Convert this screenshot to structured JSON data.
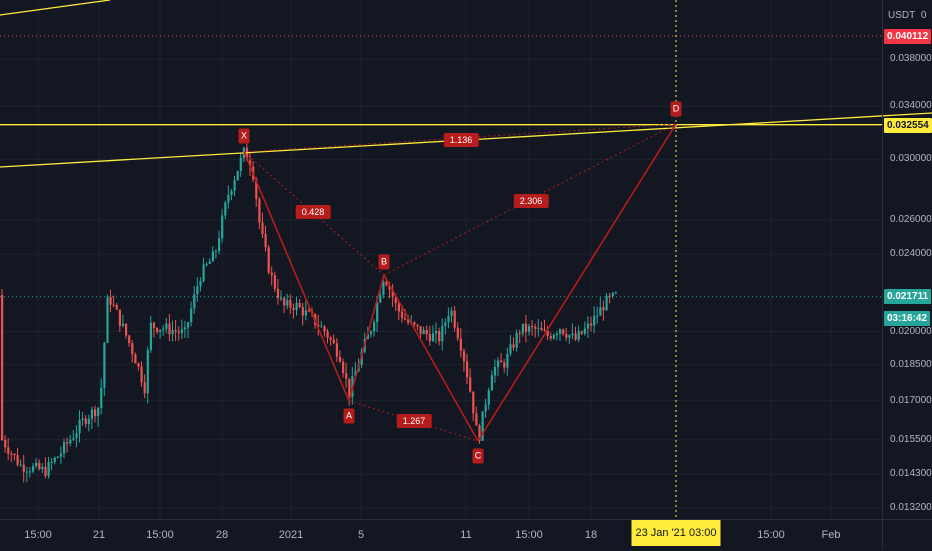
{
  "price_axis": {
    "currency_label": "USDT",
    "mode_label": "0",
    "tick_labels": [
      {
        "value": 0.038,
        "text": "0.038000"
      },
      {
        "value": 0.034,
        "text": "0.034000"
      },
      {
        "value": 0.03,
        "text": "0.030000"
      },
      {
        "value": 0.026,
        "text": "0.026000"
      },
      {
        "value": 0.024,
        "text": "0.024000"
      },
      {
        "value": 0.02,
        "text": "0.020000"
      },
      {
        "value": 0.0185,
        "text": "0.018500"
      },
      {
        "value": 0.017,
        "text": "0.017000"
      },
      {
        "value": 0.0155,
        "text": "0.015500"
      },
      {
        "value": 0.0143,
        "text": "0.014300"
      },
      {
        "value": 0.0132,
        "text": "0.013200"
      }
    ],
    "price_tags": {
      "alert": {
        "value": 0.040112,
        "text": "0.040112",
        "color": "#f23645"
      },
      "line": {
        "value": 0.032554,
        "text": "0.032554",
        "color": "#ffeb3b"
      },
      "last": {
        "value": 0.021711,
        "text": "0.021711",
        "color": "#26a69a"
      },
      "countdown": {
        "text": "03:16:42",
        "color": "#26a69a"
      }
    }
  },
  "time_axis": {
    "labels": [
      "15:00",
      "21",
      "15:00",
      "28",
      "2021",
      "5",
      "11",
      "15:00",
      "18",
      "15:00",
      "Feb"
    ],
    "crosshair_label": "23 Jan '21   03:00"
  },
  "pattern": {
    "points": [
      {
        "label": "X",
        "time": "29 Dec 2020",
        "price": 0.0305
      },
      {
        "label": "A",
        "time": "4 Jan 2021",
        "price": 0.0172
      },
      {
        "label": "B",
        "time": "6 Jan 2021",
        "price": 0.0229
      },
      {
        "label": "C",
        "time": "11 Jan 2021",
        "price": 0.0154
      },
      {
        "label": "D",
        "time": "23 Jan 2021",
        "price": 0.03255
      }
    ],
    "ratios": [
      "0.428",
      "1.267",
      "2.306",
      "1.136"
    ]
  },
  "colors": {
    "background": "#131722",
    "grid": "#1e222d",
    "up": "#26a69a",
    "down": "#ef5350",
    "pattern": "#b71c1c",
    "trendline": "#ffeb3b",
    "crosshair": "#ffeb3b"
  }
}
